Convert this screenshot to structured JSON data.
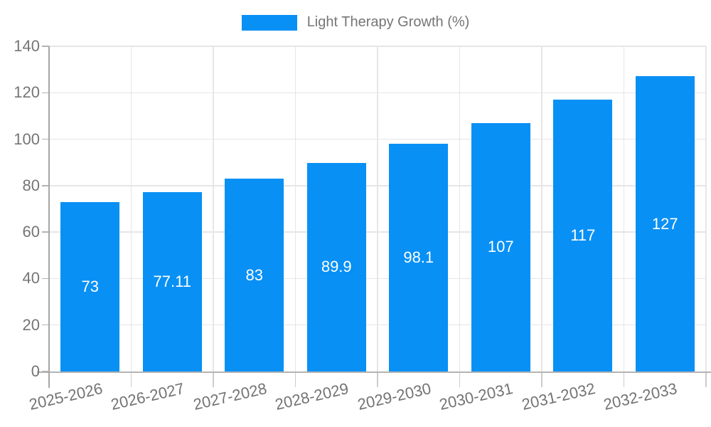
{
  "legend": {
    "label": "Light Therapy Growth (%)"
  },
  "colors": {
    "bar": "#0890f5",
    "grid": "#e6e6e6",
    "axis": "#b3b3b3",
    "tick_text": "#757575",
    "value_label": "#ffffff",
    "background": "#ffffff"
  },
  "chart_data": {
    "type": "bar",
    "title": "",
    "categories": [
      "2025-2026",
      "2026-2027",
      "2027-2028",
      "2028-2029",
      "2029-2030",
      "2030-2031",
      "2031-2032",
      "2032-2033"
    ],
    "series": [
      {
        "name": "Light Therapy Growth (%)",
        "values": [
          73,
          77.11,
          83,
          89.9,
          98.1,
          107,
          117,
          127
        ]
      }
    ],
    "value_labels": [
      "73",
      "77.11",
      "83",
      "89.9",
      "98.1",
      "107",
      "117",
      "127"
    ],
    "xlabel": "",
    "ylabel": "",
    "ylim": [
      0,
      140
    ],
    "yticks": [
      0,
      20,
      40,
      60,
      80,
      100,
      120,
      140
    ],
    "grid": true,
    "legend_position": "top",
    "bar_color": "#0890f5",
    "value_label_color": "#ffffff"
  }
}
